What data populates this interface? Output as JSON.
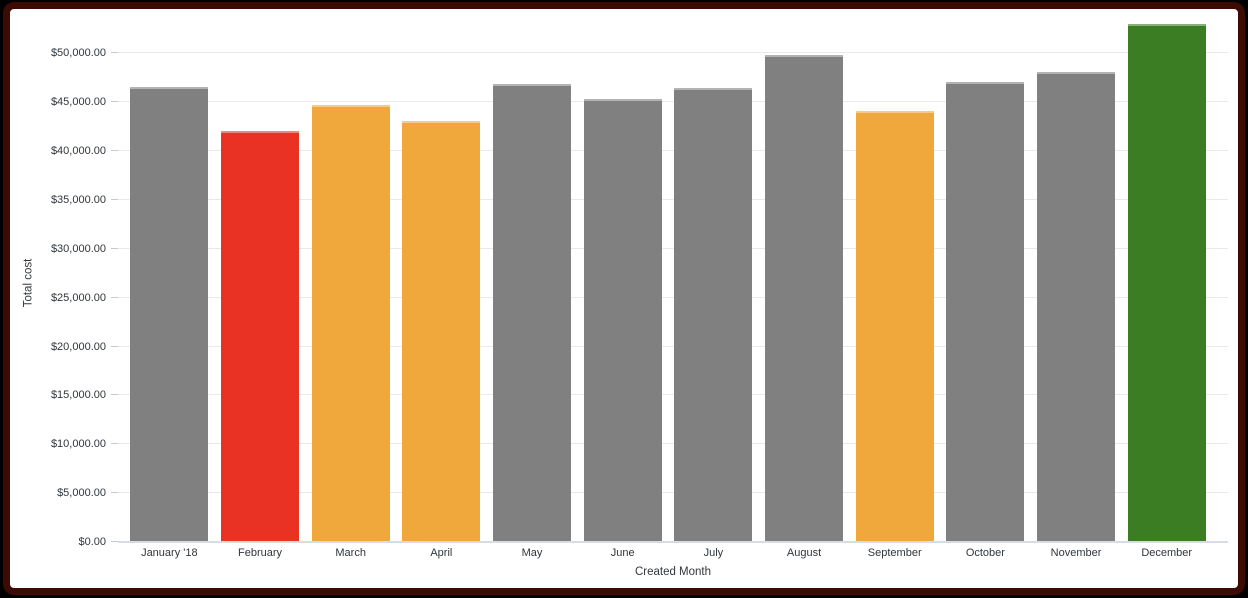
{
  "frame": {
    "outer_color": "#000000",
    "border_color": "#3b0b04",
    "card_background": "#ffffff"
  },
  "chart_data": {
    "type": "bar",
    "title": "",
    "xlabel": "Created Month",
    "ylabel": "Total cost",
    "categories": [
      "January '18",
      "February",
      "March",
      "April",
      "May",
      "June",
      "July",
      "August",
      "September",
      "October",
      "November",
      "December"
    ],
    "values": [
      46600,
      42100,
      44750,
      43100,
      46900,
      45300,
      46450,
      49850,
      44150,
      47050,
      48100,
      53000
    ],
    "bar_colors": [
      "#808080",
      "#e93223",
      "#f0a83c",
      "#f0a83c",
      "#808080",
      "#808080",
      "#808080",
      "#808080",
      "#f0a83c",
      "#808080",
      "#808080",
      "#3a7d22"
    ],
    "color_legend": {
      "default": "#808080",
      "low_alert": "#e93223",
      "warning": "#f0a83c",
      "high": "#3a7d22"
    },
    "ylim": [
      0,
      53000
    ],
    "yticks": [
      0,
      5000,
      10000,
      15000,
      20000,
      25000,
      30000,
      35000,
      40000,
      45000,
      50000
    ],
    "ytick_labels": [
      "$0.00",
      "$5,000.00",
      "$10,000.00",
      "$15,000.00",
      "$20,000.00",
      "$25,000.00",
      "$30,000.00",
      "$35,000.00",
      "$40,000.00",
      "$45,000.00",
      "$50,000.00"
    ],
    "grid": true,
    "legend_position": "none"
  }
}
